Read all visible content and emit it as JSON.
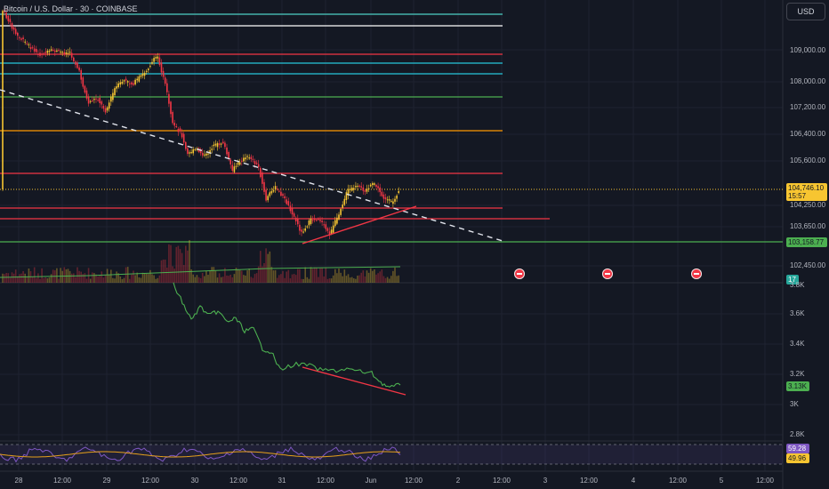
{
  "header": {
    "title": "Bitcoin / U.S. Dollar · 30 · COINBASE",
    "currency_button": "USD"
  },
  "price_axis": {
    "labels": [
      "109,000.00",
      "108,000.00",
      "107,200.00",
      "106,400.00",
      "105,600.00",
      "104,250.00",
      "103,650.00",
      "102,450.00"
    ],
    "current_price": "104,746.10",
    "countdown": "15:57",
    "level_badge": "103,158.77",
    "volume_badge": "17"
  },
  "indicator_axis": {
    "labels": [
      "3.8K",
      "3.6K",
      "3.4K",
      "3.2K",
      "3K",
      "2.8K"
    ],
    "current_value": "3.13K"
  },
  "rsi_axis": {
    "value_1": "59.28",
    "value_2": "49.96"
  },
  "time_axis": {
    "labels": [
      "28",
      "12:00",
      "29",
      "12:00",
      "30",
      "12:00",
      "31",
      "12:00",
      "Jun",
      "12:00",
      "2",
      "12:00",
      "3",
      "12:00",
      "4",
      "12:00",
      "5",
      "12:00"
    ]
  },
  "colors": {
    "background": "#141823",
    "up": "#f7c531",
    "down": "#f23645",
    "indicator": "#4caf50",
    "rsi": "#e6a01a"
  }
}
